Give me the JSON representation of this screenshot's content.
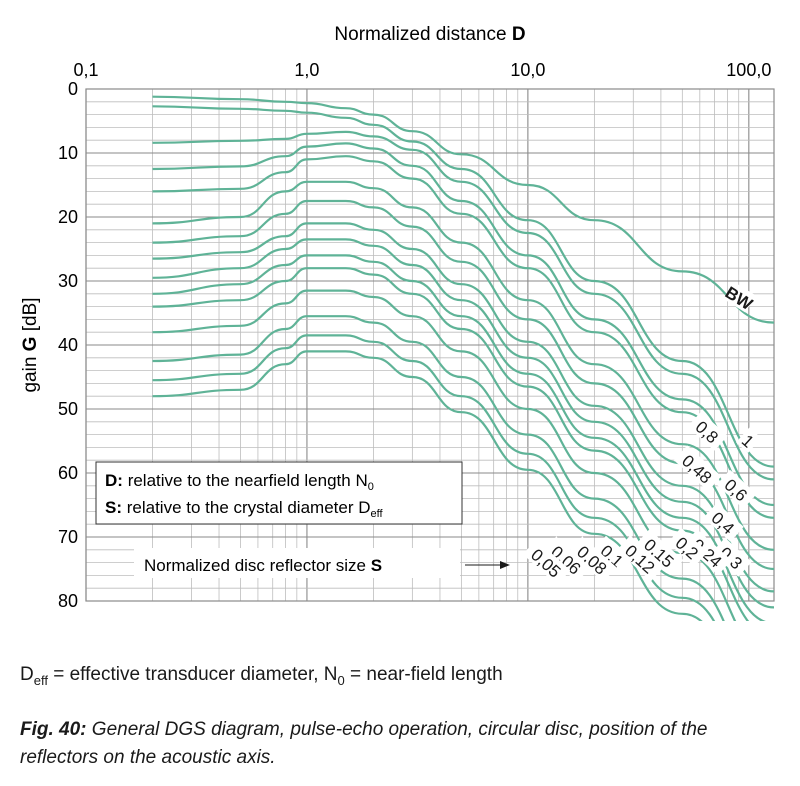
{
  "chart_data": {
    "type": "line",
    "title": "",
    "xlabel": "Normalized distance",
    "xlabel_symbol": "D",
    "ylabel": "gain",
    "ylabel_symbol": "G",
    "ylabel_unit": "[dB]",
    "x_scale": "log",
    "xlim": [
      0.1,
      130
    ],
    "ylim": [
      0,
      80
    ],
    "y_inverted": true,
    "x_ticks": [
      "0,1",
      "1,0",
      "10,0",
      "100,0"
    ],
    "y_ticks": [
      "0",
      "10",
      "20",
      "30",
      "40",
      "50",
      "60",
      "70",
      "80"
    ],
    "grid": true,
    "line_color": "#5fb397",
    "legend_box": {
      "line1_prefix": "D:",
      "line1_text": "relative to the nearfield length N",
      "line1_sub": "0",
      "line2_prefix": "S:",
      "line2_text": "relative to the crystal diameter D",
      "line2_sub": "eff"
    },
    "annotation": {
      "text": "Normalized disc reflector size",
      "symbol": "S"
    },
    "series": [
      {
        "name": "BW",
        "x": [
          0.2,
          0.5,
          0.8,
          1.0,
          1.5,
          2,
          3,
          5,
          10,
          20,
          50,
          130
        ],
        "y": [
          1.2,
          1.6,
          2.0,
          2.2,
          3.0,
          4.0,
          6.6,
          10.2,
          15.0,
          20.5,
          28.5,
          36.5
        ]
      },
      {
        "name": "1",
        "x": [
          0.2,
          0.5,
          0.8,
          1.0,
          1.5,
          2,
          3,
          5,
          10,
          20,
          50,
          130
        ],
        "y": [
          2.7,
          3.1,
          3.4,
          3.7,
          4.5,
          5.6,
          8.2,
          12.5,
          20.5,
          30,
          42.5,
          59
        ]
      },
      {
        "name": "0,8",
        "x": [
          0.2,
          0.5,
          0.8,
          1.0,
          1.5,
          2,
          3,
          5,
          10,
          20,
          50,
          130
        ],
        "y": [
          8.4,
          8.1,
          7.8,
          7.0,
          6.7,
          7.4,
          9.5,
          14.5,
          22.5,
          32,
          44.5,
          61
        ]
      },
      {
        "name": "0,6",
        "x": [
          0.2,
          0.5,
          0.8,
          1.0,
          1.5,
          2,
          3,
          5,
          10,
          20,
          50,
          130
        ],
        "y": [
          12.5,
          12.1,
          10.5,
          9.0,
          8.5,
          9.3,
          12.0,
          17.5,
          26,
          36,
          48.5,
          65
        ]
      },
      {
        "name": "0,48",
        "x": [
          0.2,
          0.5,
          0.8,
          1.0,
          1.5,
          2,
          3,
          5,
          10,
          20,
          50,
          130
        ],
        "y": [
          16.0,
          15.6,
          13.0,
          11.0,
          10.5,
          11.3,
          14.0,
          19.5,
          28,
          38,
          50.5,
          67
        ]
      },
      {
        "name": "0,4",
        "x": [
          0.2,
          0.5,
          0.8,
          1.0,
          1.5,
          2,
          3,
          5,
          10,
          20,
          50,
          130
        ],
        "y": [
          21.0,
          20.0,
          16.0,
          14.5,
          14.5,
          15.5,
          18.5,
          24,
          33,
          43,
          55.5,
          72
        ]
      },
      {
        "name": "0,3",
        "x": [
          0.2,
          0.5,
          0.8,
          1.0,
          1.5,
          2,
          3,
          5,
          10,
          20,
          50,
          130
        ],
        "y": [
          24.0,
          23.0,
          19.5,
          17.5,
          17.5,
          18.5,
          21.5,
          27,
          36,
          46,
          58.5,
          75
        ]
      },
      {
        "name": "0,24",
        "x": [
          0.2,
          0.5,
          0.8,
          1.0,
          1.5,
          2,
          3,
          5,
          10,
          20,
          50,
          130
        ],
        "y": [
          26.5,
          25.5,
          23.0,
          21.0,
          21.0,
          22.0,
          25,
          30.5,
          39.5,
          49.5,
          62,
          78.5
        ]
      },
      {
        "name": "0,2",
        "x": [
          0.2,
          0.5,
          0.8,
          1.0,
          1.5,
          2,
          3,
          5,
          10,
          20,
          50,
          130
        ],
        "y": [
          29.5,
          28.0,
          25.0,
          23.5,
          23.5,
          24.5,
          27.5,
          33,
          42,
          52,
          64.5,
          81
        ]
      },
      {
        "name": "0,15",
        "x": [
          0.2,
          0.5,
          0.8,
          1.0,
          1.5,
          2,
          3,
          5,
          10,
          20,
          50,
          130
        ],
        "y": [
          32.0,
          30.5,
          27.5,
          26.0,
          26.0,
          27.0,
          30,
          35.5,
          44.5,
          54.5,
          67,
          83.5
        ]
      },
      {
        "name": "0,12",
        "x": [
          0.2,
          0.5,
          0.8,
          1.0,
          1.5,
          2,
          3,
          5,
          10,
          20,
          50,
          130
        ],
        "y": [
          34.0,
          33.0,
          30.0,
          28.0,
          28.0,
          29.0,
          32,
          37.5,
          46.5,
          56.5,
          69,
          85.5
        ]
      },
      {
        "name": "0,1",
        "x": [
          0.2,
          0.5,
          0.8,
          1.0,
          1.5,
          2,
          3,
          5,
          10,
          20,
          50,
          130
        ],
        "y": [
          38.0,
          37.0,
          33.5,
          31.5,
          31.5,
          32.5,
          35.5,
          41,
          50,
          60,
          72.5,
          89
        ]
      },
      {
        "name": "0,08",
        "x": [
          0.2,
          0.5,
          0.8,
          1.0,
          1.5,
          2,
          3,
          5,
          10,
          20,
          50,
          130
        ],
        "y": [
          42.5,
          41.5,
          37.5,
          35.5,
          35.5,
          36.5,
          39.5,
          45,
          54,
          64,
          76.5,
          93
        ]
      },
      {
        "name": "0,06",
        "x": [
          0.2,
          0.5,
          0.8,
          1.0,
          1.5,
          2,
          3,
          5,
          10,
          20,
          50,
          130
        ],
        "y": [
          45.5,
          44.5,
          40.5,
          38.5,
          38.5,
          39.5,
          42.5,
          48,
          57,
          67,
          79.5,
          96
        ]
      },
      {
        "name": "0,05",
        "x": [
          0.2,
          0.5,
          0.8,
          1.0,
          1.5,
          2,
          3,
          5,
          10,
          20,
          50,
          130
        ],
        "y": [
          48.0,
          47.0,
          43.0,
          41.0,
          41.0,
          42.0,
          45,
          50.5,
          59.5,
          69.5,
          82,
          98.5
        ]
      }
    ]
  },
  "footnote": {
    "deff_main": "D",
    "deff_sub": "eff",
    "deff_text": " = effective transducer diameter, N",
    "n0_sub": "0",
    "n0_text": " = near-field length"
  },
  "caption": {
    "label": "Fig. 40:",
    "text": " General DGS diagram, pulse-echo operation, circular disc, position of the reflectors on the acoustic axis."
  }
}
